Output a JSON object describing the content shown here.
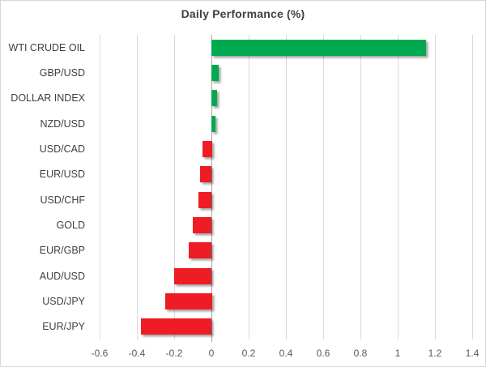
{
  "chart_data": {
    "type": "bar",
    "orientation": "horizontal",
    "title": "Daily Performance (%)",
    "categories": [
      "WTI CRUDE OIL",
      "GBP/USD",
      "DOLLAR INDEX",
      "NZD/USD",
      "USD/CAD",
      "EUR/USD",
      "USD/CHF",
      "GOLD",
      "EUR/GBP",
      "AUD/USD",
      "USD/JPY",
      "EUR/JPY"
    ],
    "values": [
      1.15,
      0.04,
      0.03,
      0.02,
      -0.05,
      -0.06,
      -0.07,
      -0.1,
      -0.12,
      -0.2,
      -0.25,
      -0.38
    ],
    "xlabel": "",
    "ylabel": "",
    "xlim": [
      -0.6,
      1.4
    ],
    "xticks": [
      -0.6,
      -0.4,
      -0.2,
      0,
      0.2,
      0.4,
      0.6,
      0.8,
      1,
      1.2,
      1.4
    ],
    "xtick_labels": [
      "-0.6",
      "-0.4",
      "-0.2",
      "0",
      "0.2",
      "0.4",
      "0.6",
      "0.8",
      "1",
      "1.2",
      "1.4"
    ],
    "grid": true,
    "legend": false,
    "colors": {
      "positive": "#00A94F",
      "negative": "#EE1C25",
      "gridline": "#D9D9D9",
      "zero_axis": "#A6A6A6",
      "title_text": "#404040",
      "category_text": "#404040",
      "tick_text": "#595959",
      "chart_border": "#D7D7D7",
      "background": "#FFFFFF"
    }
  }
}
